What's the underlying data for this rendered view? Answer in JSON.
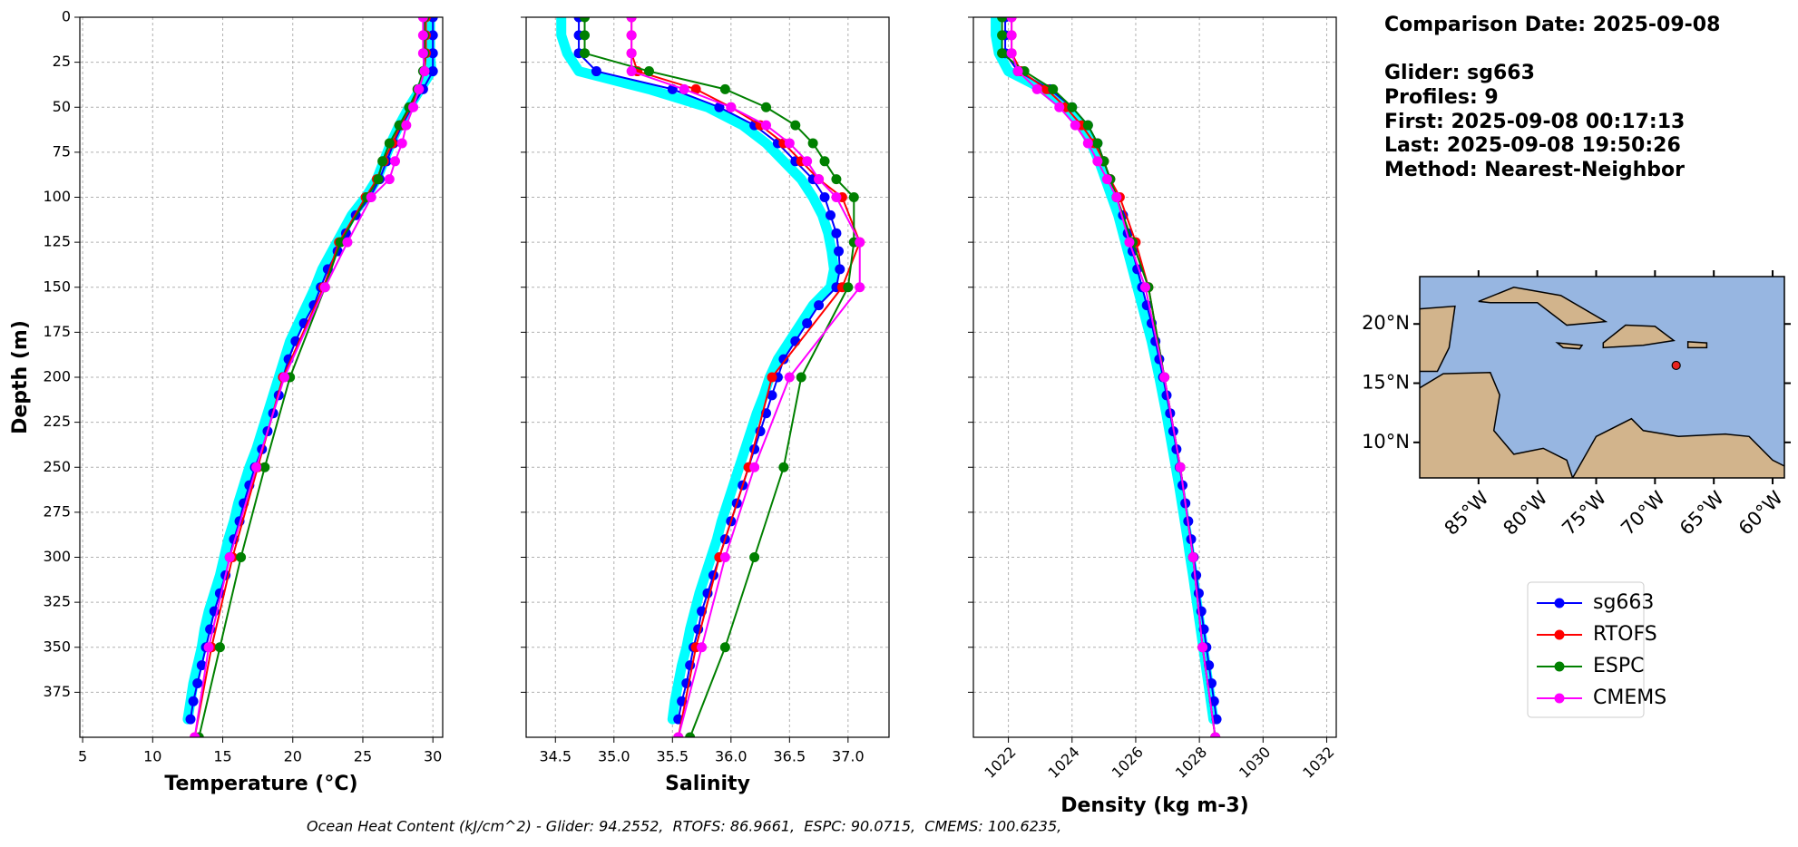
{
  "chart_data": [
    {
      "type": "profile",
      "xlabel": "Temperature (°C)",
      "ylabel": "Depth (m)",
      "xlim": [
        4.8,
        30.7
      ],
      "xticks": [
        5,
        10,
        15,
        20,
        25,
        30
      ],
      "ylim": [
        0,
        400
      ],
      "yticks": [
        0,
        25,
        50,
        75,
        100,
        125,
        150,
        175,
        200,
        225,
        250,
        275,
        300,
        325,
        350,
        375
      ],
      "ytick_labels": true,
      "grid": true,
      "series": [
        {
          "color": "#00ffff",
          "y": [
            0,
            10,
            20,
            30,
            40,
            50,
            60,
            70,
            80,
            90,
            100,
            110,
            120,
            130,
            140,
            150,
            160,
            170,
            180,
            190,
            200,
            210,
            220,
            230,
            240,
            250,
            260,
            270,
            280,
            290,
            300,
            310,
            320,
            330,
            340,
            350,
            360,
            370,
            380,
            390
          ],
          "values": [
            29.8,
            29.8,
            29.8,
            29.9,
            29.1,
            28.3,
            27.6,
            27.0,
            26.5,
            26.0,
            25.2,
            24.2,
            23.5,
            22.8,
            22.1,
            21.6,
            21.0,
            20.4,
            19.8,
            19.4,
            19.0,
            18.6,
            18.2,
            17.8,
            17.4,
            16.9,
            16.5,
            16.1,
            15.8,
            15.4,
            15.1,
            14.8,
            14.4,
            14.0,
            13.7,
            13.5,
            13.2,
            12.9,
            12.7,
            12.5
          ]
        },
        {
          "name": "sg663",
          "color": "#0000ff",
          "y": [
            0,
            10,
            20,
            30,
            40,
            50,
            60,
            70,
            80,
            90,
            100,
            110,
            120,
            130,
            140,
            150,
            160,
            170,
            180,
            190,
            200,
            210,
            220,
            230,
            240,
            250,
            260,
            270,
            280,
            290,
            300,
            310,
            320,
            330,
            340,
            350,
            360,
            370,
            380,
            390
          ],
          "values": [
            30.0,
            30.0,
            30.0,
            30.0,
            29.3,
            28.5,
            27.8,
            27.2,
            26.7,
            26.2,
            25.5,
            24.5,
            23.8,
            23.2,
            22.5,
            22.0,
            21.5,
            20.8,
            20.2,
            19.7,
            19.3,
            19.0,
            18.6,
            18.2,
            17.8,
            17.3,
            16.9,
            16.5,
            16.2,
            15.8,
            15.5,
            15.2,
            14.8,
            14.4,
            14.1,
            13.8,
            13.5,
            13.2,
            12.9,
            12.7
          ]
        },
        {
          "name": "RTOFS",
          "color": "#ff0000",
          "y": [
            0,
            10,
            20,
            30,
            40,
            50,
            60,
            70,
            80,
            90,
            100,
            125,
            150,
            200,
            250,
            300,
            350,
            400
          ],
          "values": [
            29.5,
            29.5,
            29.5,
            29.4,
            29.0,
            28.4,
            27.7,
            27.1,
            26.5,
            26.0,
            25.2,
            23.3,
            22.2,
            19.3,
            17.5,
            15.7,
            14.2,
            13.0
          ]
        },
        {
          "name": "ESPC",
          "color": "#008000",
          "y": [
            0,
            10,
            20,
            30,
            40,
            50,
            60,
            70,
            80,
            90,
            100,
            125,
            150,
            200,
            250,
            300,
            350,
            400
          ],
          "values": [
            29.4,
            29.4,
            29.4,
            29.3,
            28.9,
            28.3,
            27.6,
            26.9,
            26.4,
            26.1,
            25.3,
            23.4,
            22.3,
            19.8,
            18.0,
            16.3,
            14.8,
            13.3
          ]
        },
        {
          "name": "CMEMS",
          "color": "#ff00ff",
          "y": [
            0,
            10,
            20,
            30,
            40,
            50,
            60,
            70,
            80,
            90,
            100,
            125,
            150,
            200,
            250,
            300,
            350,
            400
          ],
          "values": [
            29.3,
            29.3,
            29.3,
            29.4,
            29.0,
            28.6,
            28.1,
            27.8,
            27.3,
            26.9,
            25.6,
            23.9,
            22.3,
            19.4,
            17.4,
            15.5,
            14.0,
            13.0
          ]
        }
      ]
    },
    {
      "type": "profile",
      "xlabel": "Salinity",
      "xlim": [
        34.25,
        37.35
      ],
      "xticks": [
        34.5,
        {
          "value": 35,
          "label": "35.0"
        },
        35.5,
        {
          "value": 36,
          "label": "36.0"
        },
        36.5,
        {
          "value": 37,
          "label": "37.0"
        }
      ],
      "ylim": [
        0,
        400
      ],
      "yticks": [
        0,
        25,
        50,
        75,
        100,
        125,
        150,
        175,
        200,
        225,
        250,
        275,
        300,
        325,
        350,
        375
      ],
      "ytick_labels": false,
      "grid": true,
      "series": [
        {
          "color": "#00ffff",
          "y": [
            0,
            10,
            20,
            30,
            40,
            50,
            60,
            70,
            80,
            90,
            100,
            110,
            120,
            130,
            140,
            150,
            160,
            170,
            180,
            190,
            200,
            210,
            220,
            230,
            240,
            250,
            260,
            270,
            280,
            290,
            300,
            310,
            320,
            330,
            340,
            350,
            360,
            370,
            380,
            390
          ],
          "values": [
            34.55,
            34.55,
            34.6,
            34.7,
            35.3,
            35.8,
            36.1,
            36.3,
            36.45,
            36.6,
            36.7,
            36.78,
            36.83,
            36.86,
            36.88,
            36.85,
            36.7,
            36.6,
            36.5,
            36.4,
            36.33,
            36.28,
            36.22,
            36.17,
            36.12,
            36.07,
            36.02,
            35.97,
            35.92,
            35.88,
            35.83,
            35.78,
            35.73,
            35.69,
            35.65,
            35.62,
            35.58,
            35.55,
            35.52,
            35.5
          ]
        },
        {
          "name": "sg663",
          "color": "#0000ff",
          "y": [
            0,
            10,
            20,
            30,
            40,
            50,
            60,
            70,
            80,
            90,
            100,
            110,
            120,
            130,
            140,
            150,
            160,
            170,
            180,
            190,
            200,
            210,
            220,
            230,
            240,
            250,
            260,
            270,
            280,
            290,
            300,
            310,
            320,
            330,
            340,
            350,
            360,
            370,
            380,
            390
          ],
          "values": [
            34.7,
            34.7,
            34.7,
            34.85,
            35.5,
            35.9,
            36.2,
            36.4,
            36.55,
            36.7,
            36.8,
            36.85,
            36.9,
            36.92,
            36.93,
            36.9,
            36.75,
            36.65,
            36.55,
            36.45,
            36.4,
            36.35,
            36.3,
            36.25,
            36.2,
            36.15,
            36.1,
            36.05,
            36.0,
            35.95,
            35.9,
            35.85,
            35.8,
            35.75,
            35.72,
            35.68,
            35.65,
            35.62,
            35.58,
            35.55
          ]
        },
        {
          "name": "RTOFS",
          "color": "#ff0000",
          "y": [
            0,
            10,
            20,
            30,
            40,
            50,
            60,
            70,
            80,
            90,
            100,
            125,
            150,
            200,
            250,
            300,
            350,
            400
          ],
          "values": [
            35.15,
            35.15,
            35.15,
            35.2,
            35.7,
            36.0,
            36.25,
            36.45,
            36.6,
            36.75,
            36.95,
            37.1,
            36.95,
            36.35,
            36.15,
            35.9,
            35.7,
            35.55
          ]
        },
        {
          "name": "ESPC",
          "color": "#008000",
          "y": [
            0,
            10,
            20,
            30,
            40,
            50,
            60,
            70,
            80,
            90,
            100,
            125,
            150,
            200,
            250,
            300,
            350,
            400
          ],
          "values": [
            34.75,
            34.75,
            34.75,
            35.3,
            35.95,
            36.3,
            36.55,
            36.7,
            36.8,
            36.9,
            37.05,
            37.05,
            37.0,
            36.6,
            36.45,
            36.2,
            35.95,
            35.65
          ]
        },
        {
          "name": "CMEMS",
          "color": "#ff00ff",
          "y": [
            0,
            10,
            20,
            30,
            40,
            50,
            60,
            70,
            80,
            90,
            100,
            125,
            150,
            200,
            250,
            300,
            350,
            400
          ],
          "values": [
            35.15,
            35.15,
            35.15,
            35.15,
            35.6,
            36.0,
            36.3,
            36.5,
            36.65,
            36.75,
            36.9,
            37.1,
            37.1,
            36.5,
            36.2,
            35.95,
            35.75,
            35.55
          ]
        }
      ]
    },
    {
      "type": "profile",
      "xlabel": "Density (kg m-3)",
      "xlim": [
        1020.9,
        1032.3
      ],
      "xticks": [
        1022,
        1024,
        1026,
        1028,
        1030,
        1032
      ],
      "xtick_rotation": 45,
      "ylim": [
        0,
        400
      ],
      "yticks": [
        0,
        25,
        50,
        75,
        100,
        125,
        150,
        175,
        200,
        225,
        250,
        275,
        300,
        325,
        350,
        375
      ],
      "ytick_labels": false,
      "grid": true,
      "series": [
        {
          "color": "#00ffff",
          "y": [
            0,
            10,
            20,
            30,
            40,
            50,
            60,
            70,
            80,
            90,
            100,
            110,
            120,
            130,
            140,
            150,
            160,
            170,
            180,
            190,
            200,
            210,
            220,
            230,
            240,
            250,
            260,
            270,
            280,
            290,
            300,
            310,
            320,
            330,
            340,
            350,
            360,
            370,
            380,
            390
          ],
          "values": [
            1021.6,
            1021.6,
            1021.7,
            1022.0,
            1023.1,
            1023.8,
            1024.3,
            1024.6,
            1024.85,
            1025.05,
            1025.25,
            1025.45,
            1025.6,
            1025.75,
            1025.9,
            1026.05,
            1026.2,
            1026.35,
            1026.5,
            1026.62,
            1026.74,
            1026.85,
            1026.96,
            1027.06,
            1027.16,
            1027.26,
            1027.36,
            1027.45,
            1027.54,
            1027.63,
            1027.71,
            1027.8,
            1027.88,
            1027.96,
            1028.04,
            1028.12,
            1028.2,
            1028.28,
            1028.36,
            1028.44
          ]
        },
        {
          "name": "sg663",
          "color": "#0000ff",
          "y": [
            0,
            10,
            20,
            30,
            40,
            50,
            60,
            70,
            80,
            90,
            100,
            110,
            120,
            130,
            140,
            150,
            160,
            170,
            180,
            190,
            200,
            210,
            220,
            230,
            240,
            250,
            260,
            270,
            280,
            290,
            300,
            310,
            320,
            330,
            340,
            350,
            360,
            370,
            380,
            390
          ],
          "values": [
            1021.9,
            1021.9,
            1021.9,
            1022.3,
            1023.3,
            1024.0,
            1024.5,
            1024.8,
            1025.0,
            1025.2,
            1025.4,
            1025.6,
            1025.75,
            1025.9,
            1026.05,
            1026.2,
            1026.35,
            1026.5,
            1026.62,
            1026.74,
            1026.86,
            1026.97,
            1027.08,
            1027.18,
            1027.28,
            1027.38,
            1027.47,
            1027.56,
            1027.65,
            1027.74,
            1027.82,
            1027.9,
            1027.98,
            1028.06,
            1028.14,
            1028.22,
            1028.3,
            1028.38,
            1028.46,
            1028.54
          ]
        },
        {
          "name": "RTOFS",
          "color": "#ff0000",
          "y": [
            0,
            10,
            20,
            30,
            40,
            50,
            60,
            70,
            80,
            90,
            100,
            125,
            150,
            200,
            250,
            300,
            350,
            400
          ],
          "values": [
            1022.1,
            1022.1,
            1022.1,
            1022.4,
            1023.2,
            1023.8,
            1024.3,
            1024.7,
            1025.0,
            1025.2,
            1025.5,
            1026.0,
            1026.4,
            1026.9,
            1027.4,
            1027.8,
            1028.1,
            1028.5
          ]
        },
        {
          "name": "ESPC",
          "color": "#008000",
          "y": [
            0,
            10,
            20,
            30,
            40,
            50,
            60,
            70,
            80,
            90,
            100,
            125,
            150,
            200,
            250,
            300,
            350,
            400
          ],
          "values": [
            1021.8,
            1021.8,
            1021.8,
            1022.5,
            1023.4,
            1024.0,
            1024.5,
            1024.8,
            1025.0,
            1025.2,
            1025.4,
            1025.9,
            1026.4,
            1026.9,
            1027.4,
            1027.8,
            1028.1,
            1028.5
          ]
        },
        {
          "name": "CMEMS",
          "color": "#ff00ff",
          "y": [
            0,
            10,
            20,
            30,
            40,
            50,
            60,
            70,
            80,
            90,
            100,
            125,
            150,
            200,
            250,
            300,
            350,
            400
          ],
          "values": [
            1022.1,
            1022.1,
            1022.1,
            1022.3,
            1022.9,
            1023.6,
            1024.1,
            1024.5,
            1024.8,
            1025.1,
            1025.4,
            1025.8,
            1026.3,
            1026.9,
            1027.4,
            1027.8,
            1028.1,
            1028.5
          ]
        }
      ]
    }
  ],
  "info": {
    "title": "Comparison Date: 2025-09-08",
    "lines": [
      "Glider: sg663",
      "Profiles: 9",
      "First: 2025-09-08 00:17:13",
      "Last: 2025-09-08 19:50:26",
      "Method: Nearest-Neighbor"
    ]
  },
  "map": {
    "lat_labels": [
      "20°N",
      "15°N",
      "10°N"
    ],
    "lon_labels": [
      "85°W",
      "80°W",
      "75°W",
      "70°W",
      "65°W",
      "60°W"
    ]
  },
  "footer": "Ocean Heat Content (kJ/cm^2) - Glider: 94.2552,  RTOFS: 86.9661,  ESPC: 90.0715,  CMEMS: 100.6235,"
}
